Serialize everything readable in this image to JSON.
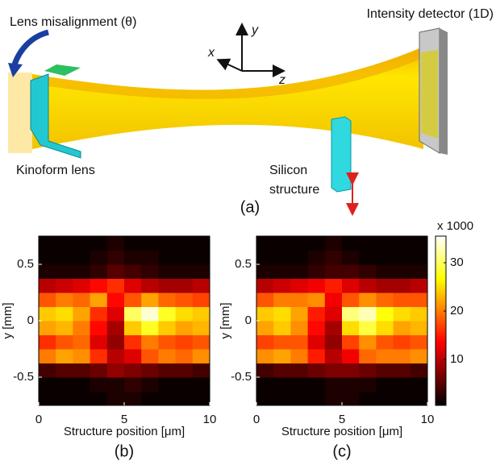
{
  "diagram": {
    "detector_label": "Intensity detector (1D)",
    "misalignment_label": "Lens misalignment (θ)",
    "axis_x": "x",
    "axis_y": "y",
    "axis_z": "z",
    "lens_label": "Kinoform lens",
    "structure_label_1": "Silicon",
    "structure_label_2": "structure",
    "panel_label": "(a)"
  },
  "chart_data": [
    {
      "type": "heatmap",
      "label": "(b)",
      "xlabel": "Structure position [μm]",
      "ylabel": "y [mm]",
      "xlim": [
        0,
        10
      ],
      "ylim": [
        -0.75,
        0.75
      ],
      "xticks": [
        0,
        5,
        10
      ],
      "yticks": [
        -0.5,
        0,
        0.5
      ],
      "xbins": [
        0,
        1,
        2,
        3,
        4,
        5,
        6,
        7,
        8,
        9,
        10
      ],
      "ybins": [
        -0.75,
        -0.625,
        -0.5,
        -0.375,
        -0.25,
        -0.125,
        0,
        0.125,
        0.25,
        0.375,
        0.5,
        0.625,
        0.75
      ],
      "z": [
        [
          1,
          1,
          1,
          1,
          2,
          2,
          1,
          1,
          1,
          1
        ],
        [
          1,
          1,
          1,
          2,
          2,
          3,
          2,
          1,
          1,
          1
        ],
        [
          4,
          5,
          5,
          6,
          8,
          7,
          6,
          5,
          5,
          4
        ],
        [
          20,
          22,
          21,
          16,
          10,
          12,
          18,
          20,
          19,
          21
        ],
        [
          16,
          18,
          19,
          12,
          8,
          16,
          20,
          18,
          17,
          18
        ],
        [
          22,
          23,
          20,
          14,
          9,
          24,
          28,
          24,
          22,
          23
        ],
        [
          24,
          25,
          22,
          16,
          12,
          30,
          34,
          28,
          25,
          24
        ],
        [
          18,
          20,
          19,
          22,
          14,
          18,
          22,
          19,
          18,
          17
        ],
        [
          10,
          11,
          12,
          14,
          16,
          12,
          10,
          9,
          9,
          10
        ],
        [
          2,
          2,
          2,
          3,
          5,
          4,
          3,
          2,
          2,
          2
        ],
        [
          1,
          1,
          1,
          2,
          3,
          2,
          2,
          1,
          1,
          1
        ],
        [
          1,
          1,
          1,
          1,
          2,
          1,
          1,
          1,
          1,
          1
        ]
      ],
      "clim": [
        0.5,
        35.5
      ],
      "colormap": "hot"
    },
    {
      "type": "heatmap",
      "label": "(c)",
      "xlabel": "Structure position [μm]",
      "ylabel": "y [mm]",
      "xlim": [
        0,
        10
      ],
      "ylim": [
        -0.75,
        0.75
      ],
      "xticks": [
        0,
        5,
        10
      ],
      "yticks": [
        -0.5,
        0,
        0.5
      ],
      "xbins": [
        0,
        1,
        2,
        3,
        4,
        5,
        6,
        7,
        8,
        9,
        10
      ],
      "ybins": [
        -0.75,
        -0.625,
        -0.5,
        -0.375,
        -0.25,
        -0.125,
        0,
        0.125,
        0.25,
        0.375,
        0.5,
        0.625,
        0.75
      ],
      "z": [
        [
          1,
          1,
          1,
          1,
          2,
          2,
          1,
          1,
          1,
          1
        ],
        [
          1,
          1,
          1,
          1,
          2,
          2,
          2,
          1,
          1,
          1
        ],
        [
          4,
          5,
          5,
          6,
          7,
          7,
          6,
          5,
          5,
          4
        ],
        [
          21,
          22,
          20,
          15,
          10,
          13,
          19,
          20,
          20,
          21
        ],
        [
          17,
          18,
          18,
          12,
          8,
          17,
          21,
          18,
          17,
          18
        ],
        [
          22,
          24,
          21,
          14,
          9,
          25,
          29,
          25,
          22,
          23
        ],
        [
          24,
          25,
          22,
          15,
          12,
          31,
          33,
          27,
          25,
          24
        ],
        [
          18,
          20,
          20,
          21,
          13,
          18,
          21,
          19,
          18,
          18
        ],
        [
          10,
          11,
          12,
          13,
          15,
          12,
          10,
          9,
          9,
          10
        ],
        [
          2,
          2,
          2,
          3,
          4,
          4,
          3,
          2,
          2,
          2
        ],
        [
          1,
          1,
          1,
          2,
          3,
          2,
          1,
          1,
          1,
          1
        ],
        [
          1,
          1,
          1,
          1,
          2,
          1,
          1,
          1,
          1,
          1
        ]
      ],
      "clim": [
        0.5,
        35.5
      ],
      "colormap": "hot",
      "colorbar": {
        "label": "x 1000",
        "ticks": [
          10,
          20,
          30
        ]
      }
    }
  ]
}
